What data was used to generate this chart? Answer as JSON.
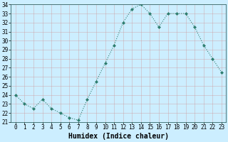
{
  "x": [
    0,
    1,
    2,
    3,
    4,
    5,
    6,
    7,
    8,
    9,
    10,
    11,
    12,
    13,
    14,
    15,
    16,
    17,
    18,
    19,
    20,
    21,
    22,
    23
  ],
  "y": [
    24.0,
    23.0,
    22.5,
    23.5,
    22.5,
    22.0,
    21.5,
    21.2,
    23.5,
    25.5,
    27.5,
    29.5,
    32.0,
    33.5,
    34.0,
    33.0,
    31.5,
    33.0,
    33.0,
    33.0,
    31.5,
    29.5,
    28.0,
    26.5
  ],
  "xlabel": "Humidex (Indice chaleur)",
  "ylim": [
    21,
    34
  ],
  "xlim": [
    -0.5,
    23.5
  ],
  "yticks": [
    21,
    22,
    23,
    24,
    25,
    26,
    27,
    28,
    29,
    30,
    31,
    32,
    33,
    34
  ],
  "xtick_labels": [
    "0",
    "1",
    "2",
    "3",
    "4",
    "5",
    "6",
    "7",
    "8",
    "9",
    "10",
    "11",
    "12",
    "13",
    "14",
    "15",
    "16",
    "17",
    "18",
    "19",
    "20",
    "21",
    "22",
    "23"
  ],
  "line_color": "#2e7d6e",
  "marker": "D",
  "marker_size": 2.0,
  "bg_color": "#cceeff",
  "grid_color": "#aacccc",
  "tick_fontsize": 5.5,
  "xlabel_fontsize": 7.0
}
